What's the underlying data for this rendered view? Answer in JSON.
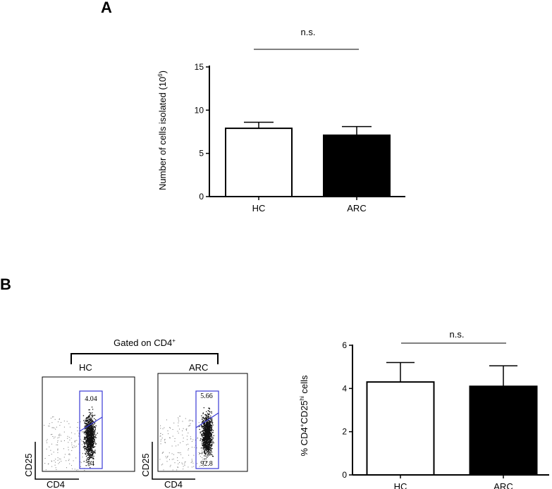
{
  "panel_labels": {
    "a": "A",
    "b": "B"
  },
  "chart_data": [
    {
      "type": "bar",
      "categories": [
        "HC",
        "ARC"
      ],
      "values": [
        7.9,
        7.1
      ],
      "errors": [
        0.7,
        1.0
      ],
      "fills": [
        "#ffffff",
        "#000000"
      ],
      "ylabel_main": "Number of cells isolated (10",
      "ylabel_sup": "6",
      "ylabel_end": ")",
      "ylim": [
        0,
        15
      ],
      "yticks": [
        "0",
        "5",
        "10",
        "15"
      ],
      "significance": "n.s."
    },
    {
      "type": "bar",
      "categories": [
        "HC",
        "ARC"
      ],
      "values": [
        4.3,
        4.1
      ],
      "errors": [
        0.9,
        0.95
      ],
      "fills": [
        "#ffffff",
        "#000000"
      ],
      "ylabel_p1": "% CD4",
      "ylabel_s1": "+",
      "ylabel_p2": "CD25",
      "ylabel_s2": "hi",
      "ylabel_p3": " cells",
      "ylim": [
        0,
        6
      ],
      "yticks": [
        "0",
        "2",
        "4",
        "6"
      ],
      "significance": "n.s."
    }
  ],
  "flow": {
    "gated_main": "Gated on CD4",
    "gated_sup": "+",
    "plots": [
      {
        "label": "HC",
        "upper": "4.04",
        "lower": "94",
        "xaxis": "CD4",
        "yaxis": "CD25"
      },
      {
        "label": "ARC",
        "upper": "5.66",
        "lower": "92.8",
        "xaxis": "CD4",
        "yaxis": "CD25"
      }
    ]
  }
}
